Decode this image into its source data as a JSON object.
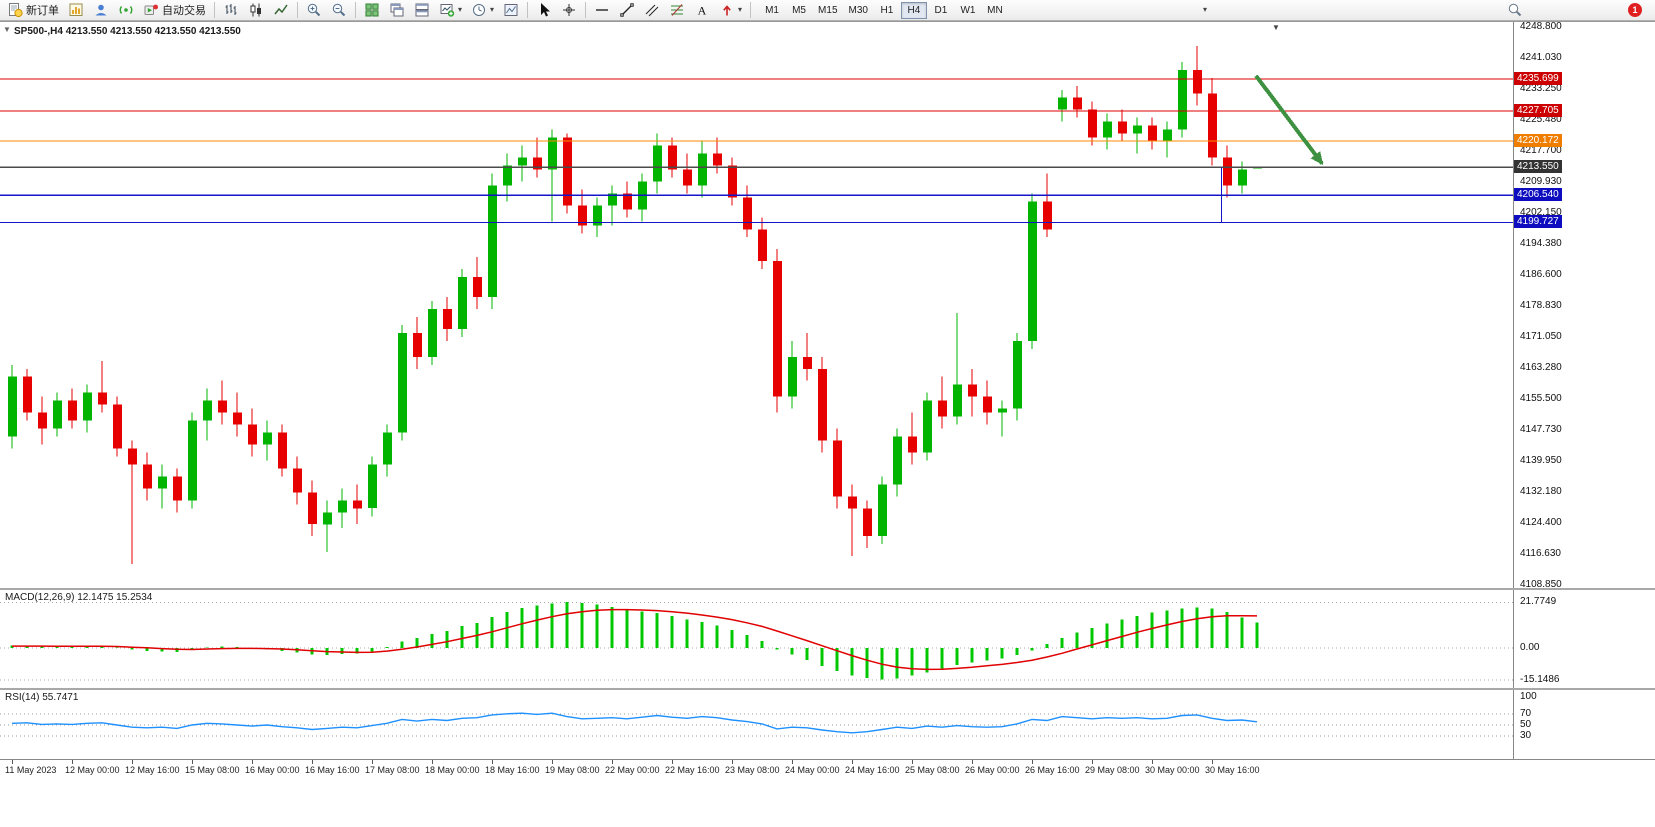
{
  "toolbar": {
    "new_order_label": "新订单",
    "auto_trading_label": "自动交易",
    "timeframes": [
      "M1",
      "M5",
      "M15",
      "M30",
      "H1",
      "H4",
      "D1",
      "W1",
      "MN"
    ],
    "active_timeframe": "H4",
    "notification_count": "1"
  },
  "chart_data": {
    "type": "candlestick",
    "symbol": "SP500-",
    "timeframe": "H4",
    "title": "SP500-,H4  4213.550 4213.550 4213.550 4213.550",
    "current_price": "4213.550",
    "ylim": [
      4108,
      4250
    ],
    "up_color": "#00b400",
    "down_color": "#e60000",
    "price_axis_labels": [
      "4248.800",
      "4241.030",
      "4233.250",
      "4225.480",
      "4217.700",
      "4209.930",
      "4202.150",
      "4194.380",
      "4186.600",
      "4178.830",
      "4171.050",
      "4163.280",
      "4155.500",
      "4147.730",
      "4139.950",
      "4132.180",
      "4124.400",
      "4116.630",
      "4108.850"
    ],
    "x_labels": [
      "11 May 2023",
      "12 May 00:00",
      "12 May 16:00",
      "15 May 08:00",
      "16 May 00:00",
      "16 May 16:00",
      "17 May 08:00",
      "18 May 00:00",
      "18 May 16:00",
      "19 May 08:00",
      "22 May 00:00",
      "22 May 16:00",
      "23 May 08:00",
      "24 May 00:00",
      "24 May 16:00",
      "25 May 08:00",
      "26 May 00:00",
      "26 May 16:00",
      "29 May 08:00",
      "30 May 00:00",
      "30 May 16:00"
    ],
    "candles": [
      [
        4146,
        4164,
        4143,
        4161
      ],
      [
        4161,
        4163,
        4150,
        4152
      ],
      [
        4152,
        4156,
        4144,
        4148
      ],
      [
        4148,
        4157,
        4146,
        4155
      ],
      [
        4155,
        4158,
        4148,
        4150
      ],
      [
        4150,
        4159,
        4147,
        4157
      ],
      [
        4157,
        4165,
        4152,
        4154
      ],
      [
        4154,
        4156,
        4141,
        4143
      ],
      [
        4143,
        4145,
        4114,
        4139
      ],
      [
        4139,
        4142,
        4130,
        4133
      ],
      [
        4133,
        4139,
        4128,
        4136
      ],
      [
        4136,
        4138,
        4127,
        4130
      ],
      [
        4130,
        4152,
        4128,
        4150
      ],
      [
        4150,
        4158,
        4145,
        4155
      ],
      [
        4155,
        4160,
        4149,
        4152
      ],
      [
        4152,
        4157,
        4146,
        4149
      ],
      [
        4149,
        4153,
        4141,
        4144
      ],
      [
        4144,
        4150,
        4140,
        4147
      ],
      [
        4147,
        4149,
        4136,
        4138
      ],
      [
        4138,
        4141,
        4129,
        4132
      ],
      [
        4132,
        4135,
        4121,
        4124
      ],
      [
        4124,
        4130,
        4117,
        4127
      ],
      [
        4127,
        4133,
        4123,
        4130
      ],
      [
        4130,
        4134,
        4124,
        4128
      ],
      [
        4128,
        4141,
        4126,
        4139
      ],
      [
        4139,
        4149,
        4136,
        4147
      ],
      [
        4147,
        4174,
        4145,
        4172
      ],
      [
        4172,
        4176,
        4163,
        4166
      ],
      [
        4166,
        4180,
        4164,
        4178
      ],
      [
        4178,
        4181,
        4170,
        4173
      ],
      [
        4173,
        4188,
        4171,
        4186
      ],
      [
        4186,
        4191,
        4178,
        4181
      ],
      [
        4181,
        4212,
        4178,
        4209
      ],
      [
        4209,
        4217,
        4205,
        4214
      ],
      [
        4214,
        4219,
        4210,
        4216
      ],
      [
        4216,
        4221,
        4211,
        4213
      ],
      [
        4213,
        4223,
        4200,
        4221
      ],
      [
        4221,
        4222,
        4202,
        4204
      ],
      [
        4204,
        4208,
        4197,
        4199
      ],
      [
        4199,
        4206,
        4196,
        4204
      ],
      [
        4204,
        4209,
        4199,
        4207
      ],
      [
        4207,
        4210,
        4201,
        4203
      ],
      [
        4203,
        4212,
        4200,
        4210
      ],
      [
        4210,
        4222,
        4207,
        4219
      ],
      [
        4219,
        4221,
        4211,
        4213
      ],
      [
        4213,
        4217,
        4207,
        4209
      ],
      [
        4209,
        4220,
        4206,
        4217
      ],
      [
        4217,
        4221,
        4212,
        4214
      ],
      [
        4214,
        4216,
        4204,
        4206
      ],
      [
        4206,
        4209,
        4196,
        4198
      ],
      [
        4198,
        4201,
        4188,
        4190
      ],
      [
        4190,
        4193,
        4152,
        4156
      ],
      [
        4156,
        4170,
        4153,
        4166
      ],
      [
        4166,
        4172,
        4160,
        4163
      ],
      [
        4163,
        4166,
        4142,
        4145
      ],
      [
        4145,
        4148,
        4128,
        4131
      ],
      [
        4131,
        4134,
        4116,
        4128
      ],
      [
        4128,
        4130,
        4118,
        4121
      ],
      [
        4121,
        4136,
        4119,
        4134
      ],
      [
        4134,
        4148,
        4131,
        4146
      ],
      [
        4146,
        4152,
        4139,
        4142
      ],
      [
        4142,
        4157,
        4140,
        4155
      ],
      [
        4155,
        4161,
        4148,
        4151
      ],
      [
        4151,
        4177,
        4149,
        4159
      ],
      [
        4159,
        4163,
        4151,
        4156
      ],
      [
        4156,
        4160,
        4149,
        4152
      ],
      [
        4152,
        4155,
        4146,
        4153
      ],
      [
        4153,
        4172,
        4150,
        4170
      ],
      [
        4170,
        4207,
        4168,
        4205
      ],
      [
        4205,
        4212,
        4196,
        4198
      ],
      [
        4228,
        4233,
        4225,
        4231
      ],
      [
        4231,
        4234,
        4226,
        4228
      ],
      [
        4228,
        4230,
        4219,
        4221
      ],
      [
        4221,
        4227,
        4218,
        4225
      ],
      [
        4225,
        4228,
        4220,
        4222
      ],
      [
        4222,
        4226,
        4217,
        4224
      ],
      [
        4224,
        4226,
        4218,
        4220
      ],
      [
        4220,
        4225,
        4216,
        4223
      ],
      [
        4223,
        4240,
        4221,
        4238
      ],
      [
        4238,
        4244,
        4229,
        4232
      ],
      [
        4232,
        4236,
        4214,
        4216
      ],
      [
        4216,
        4219,
        4206,
        4209
      ],
      [
        4209,
        4215,
        4207,
        4213
      ],
      [
        4213.55,
        4213.55,
        4213.55,
        4213.55
      ]
    ],
    "levels": [
      {
        "label": "4235.699",
        "value": 4235.699,
        "color": "#e00000",
        "badge": "#cc0000"
      },
      {
        "label": "4227.705",
        "value": 4227.705,
        "color": "#e00000",
        "badge": "#cc0000"
      },
      {
        "label": "4220.172",
        "value": 4220.172,
        "color": "#ff8a00",
        "badge": "#ef7d00"
      },
      {
        "label": "4213.550",
        "value": 4213.55,
        "color": "#4a4a4a",
        "badge": "#333333"
      },
      {
        "label": "4206.540",
        "value": 4206.54,
        "color": "#1515c8",
        "badge": "#0d0dbf"
      },
      {
        "label": "4199.727",
        "value": 4199.727,
        "color": "#1515c8",
        "badge": "#0d0dbf"
      }
    ],
    "annotations": [
      {
        "type": "arrow",
        "color": "#3d9140",
        "bar_from": 83.2,
        "price_from": 4236.5,
        "bar_to": 87.6,
        "price_to": 4214.5
      },
      {
        "type": "vline",
        "color": "#1515c8",
        "bar": 80.9,
        "price_from": 4213.5,
        "price_to": 4199.8
      }
    ],
    "indicators": {
      "macd": {
        "label": "MACD(12,26,9) 12.1475 15.2534",
        "params": "12,26,9",
        "value_main": "12.1475",
        "value_signal": "15.2534",
        "axis_labels": [
          "21.7749",
          "0.00",
          "-15.1486"
        ],
        "hist_color": "#00c800",
        "signal_color": "#e00000",
        "histogram": [
          1.2,
          1.0,
          0.7,
          0.8,
          0.6,
          0.8,
          0.9,
          0.2,
          -0.8,
          -1.4,
          -1.6,
          -1.9,
          -0.9,
          0.2,
          0.7,
          0.5,
          -0.2,
          -0.6,
          -1.4,
          -2.2,
          -3.1,
          -3.4,
          -2.9,
          -2.6,
          -1.6,
          0.4,
          3.2,
          4.8,
          6.6,
          8.2,
          10.4,
          11.8,
          14.8,
          17.2,
          19.0,
          20.3,
          21.3,
          21.8,
          21.4,
          20.6,
          19.6,
          18.4,
          17.4,
          16.6,
          15.2,
          13.6,
          12.4,
          10.8,
          8.6,
          6.2,
          3.4,
          -0.6,
          -3.2,
          -5.8,
          -8.6,
          -11.0,
          -13.0,
          -14.4,
          -15.1,
          -14.6,
          -13.2,
          -11.6,
          -9.8,
          -8.2,
          -7.0,
          -6.0,
          -5.0,
          -3.4,
          -1.2,
          1.8,
          4.8,
          7.4,
          9.6,
          11.6,
          13.6,
          15.2,
          16.8,
          17.8,
          18.8,
          19.4,
          18.9,
          17.2,
          14.6,
          12.1
        ],
        "signal": [
          0.9,
          0.9,
          0.9,
          0.8,
          0.8,
          0.8,
          0.8,
          0.7,
          0.4,
          0.1,
          -0.3,
          -0.6,
          -0.7,
          -0.5,
          -0.3,
          -0.2,
          -0.2,
          -0.3,
          -0.5,
          -0.8,
          -1.3,
          -1.7,
          -1.9,
          -2.1,
          -2.0,
          -1.5,
          -0.6,
          0.5,
          1.7,
          3.0,
          4.5,
          6.0,
          7.7,
          9.6,
          11.5,
          13.3,
          14.9,
          16.3,
          17.3,
          18.0,
          18.3,
          18.3,
          18.1,
          17.8,
          17.3,
          16.6,
          15.7,
          14.7,
          13.5,
          12.0,
          10.3,
          8.1,
          5.8,
          3.5,
          1.1,
          -1.3,
          -3.6,
          -5.8,
          -7.7,
          -9.1,
          -9.9,
          -10.2,
          -10.1,
          -9.7,
          -9.2,
          -8.5,
          -7.8,
          -6.9,
          -5.8,
          -4.3,
          -2.5,
          -0.5,
          1.5,
          3.5,
          5.5,
          7.5,
          9.3,
          11.0,
          12.6,
          13.9,
          14.9,
          15.4,
          15.4,
          15.3
        ]
      },
      "rsi": {
        "label": "RSI(14) 55.7471",
        "value": "55.7471",
        "axis_labels": [
          "100",
          "70",
          "50",
          "30"
        ],
        "levels": [
          70,
          50,
          30
        ],
        "line_color": "#1e90ff",
        "values": [
          53,
          54,
          51,
          52,
          51,
          53,
          54,
          50,
          46,
          45,
          46,
          44,
          50,
          53,
          52,
          50,
          48,
          50,
          47,
          45,
          42,
          44,
          46,
          45,
          49,
          53,
          60,
          57,
          60,
          58,
          62,
          63,
          68,
          70,
          71,
          69,
          71,
          65,
          61,
          62,
          63,
          61,
          64,
          67,
          64,
          62,
          65,
          63,
          59,
          56,
          52,
          43,
          46,
          45,
          41,
          38,
          36,
          38,
          42,
          46,
          44,
          48,
          46,
          49,
          47,
          46,
          47,
          52,
          60,
          58,
          65,
          63,
          61,
          63,
          62,
          63,
          61,
          62,
          67,
          68,
          62,
          58,
          59,
          55.7
        ]
      }
    }
  }
}
